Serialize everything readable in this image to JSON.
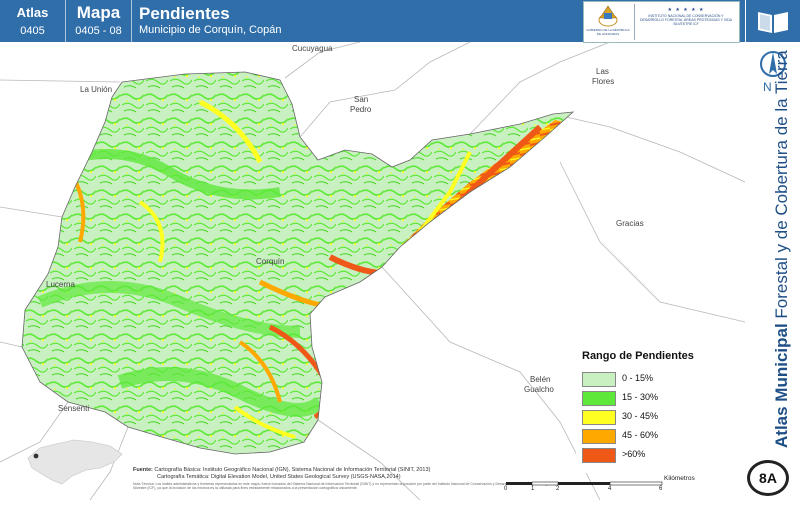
{
  "header": {
    "atlas_label": "Atlas",
    "atlas_code": "0405",
    "mapa_label": "Mapa",
    "mapa_code": "0405 - 08",
    "title": "Pendientes",
    "subtitle": "Municipio de Corquín, Copán",
    "logo_left_text": "GOBIERNO DE LA REPÚBLICA DE HONDURAS",
    "logo_right_stars": "★ ★ ★ ★ ★",
    "logo_right_text": "INSTITUTO NACIONAL DE CONSERVACIÓN Y DESARROLLO FORESTAL ÁREAS PROTEGIDAS Y VIDA SILVESTRE ICF"
  },
  "sidebar": {
    "vertical_title_bold": "Atlas Municipal",
    "vertical_title_rest": " Forestal y de Cobertura de la Tierra",
    "north_label": "N",
    "badge": "8A"
  },
  "places": {
    "cucuyagua": "Cucuyagua",
    "la_union": "La Unión",
    "san_pedro_1": "San",
    "san_pedro_2": "Pedro",
    "las_flores_1": "Las",
    "las_flores_2": "Flores",
    "gracias": "Gracias",
    "corquin": "Corquín",
    "lucerna": "Lucerna",
    "belen_1": "Belén",
    "belen_2": "Gualcho",
    "sensenti": "Sensenti"
  },
  "legend": {
    "title": "Rango de Pendientes",
    "items": [
      {
        "label": "0 - 15%",
        "color": "#c8f0c0"
      },
      {
        "label": "15 - 30%",
        "color": "#5ee83a"
      },
      {
        "label": "30 - 45%",
        "color": "#ffff22"
      },
      {
        "label": "45 - 60%",
        "color": "#ffa800"
      },
      {
        "label": ">60%",
        "color": "#f05818"
      }
    ]
  },
  "source": {
    "label": "Fuente:",
    "line1": " Cartografía Básica: Instituto Geográfico Nacional (IGN), Sistema Nacional de Información Territorial (SINIT, 2013)",
    "line2": "Cartografía Temática: Digital Elevation Model, United States Geological Survey (USGS-NASA,2014)",
    "note": "Nota Técnica: Los límites administrativos y fronteras representados en este mapa, fueron tomados del Sistema Nacional de Información Territorial (SINIT) y no representan la posición por parte del Instituto Nacional de Conservación y Desarrollo Forestal, Áreas Protegidas y Vida Silvestre (ICF), ya que la inclusión de los mismos es la utilizada para fines estrictamente relacionados a la presentación cartográfica únicamente."
  },
  "scale": {
    "unit": "Kilómetros",
    "ticks": [
      "0",
      "1",
      "2",
      "4",
      "6"
    ]
  },
  "colors": {
    "header": "#2f6ea9",
    "slope_low": "#c8f0c0",
    "slope_mid": "#5ee83a",
    "slope_high": "#ffff22",
    "slope_vhigh": "#ffa800",
    "slope_max": "#f05818"
  }
}
